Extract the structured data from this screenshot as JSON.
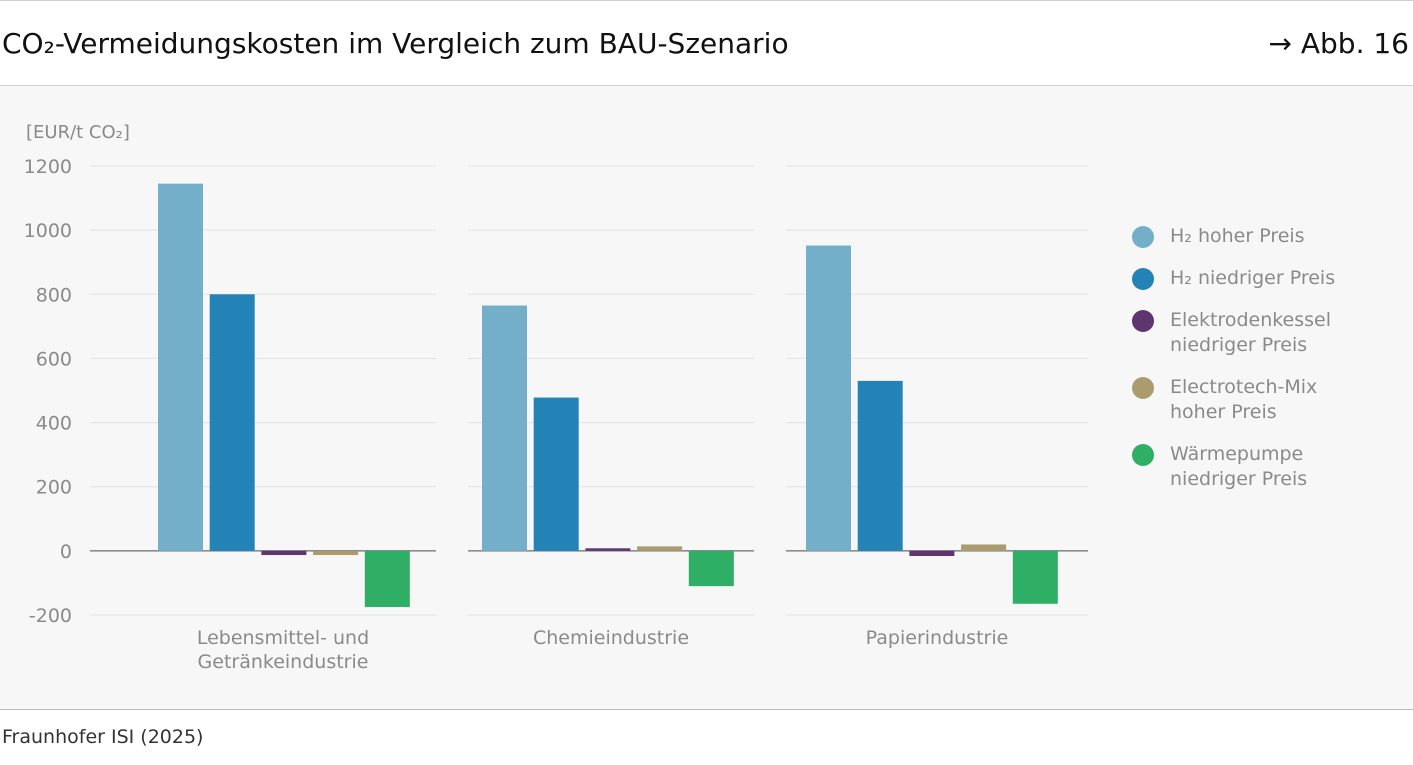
{
  "header": {
    "title": "CO₂-Vermeidungskosten im Vergleich zum BAU-Szenario",
    "figure_ref": "→ Abb. 16"
  },
  "footer": {
    "source": "Fraunhofer ISI (2025)"
  },
  "chart_data": {
    "type": "bar",
    "ylabel": "[EUR/t CO₂]",
    "ylim": [
      -200,
      1200
    ],
    "yticks": [
      1200,
      1000,
      800,
      600,
      400,
      200,
      0,
      -200
    ],
    "ytick_labels": [
      "1200",
      "1000",
      "800",
      "600",
      "400",
      "200",
      "0",
      "-200"
    ],
    "grid": true,
    "legend_position": "right",
    "categories": [
      "Lebensmittel- und\nGetränkeindustrie",
      "Chemieindustrie",
      "Papierindustrie"
    ],
    "series": [
      {
        "name": "H₂ hoher Preis",
        "color": "#74afc9",
        "values": [
          1145,
          765,
          952
        ]
      },
      {
        "name": "H₂ niedriger Preis",
        "color": "#2383b6",
        "values": [
          800,
          478,
          530
        ]
      },
      {
        "name": "Elektrodenkessel\nniedriger Preis",
        "color": "#5f3570",
        "values": [
          -13,
          8,
          -16
        ]
      },
      {
        "name": "Electrotech-Mix\nhoher Preis",
        "color": "#aa9c6f",
        "values": [
          -13,
          14,
          20
        ]
      },
      {
        "name": "Wärmepumpe\nniedriger Preis",
        "color": "#2fae66",
        "values": [
          -175,
          -110,
          -165
        ]
      }
    ]
  }
}
